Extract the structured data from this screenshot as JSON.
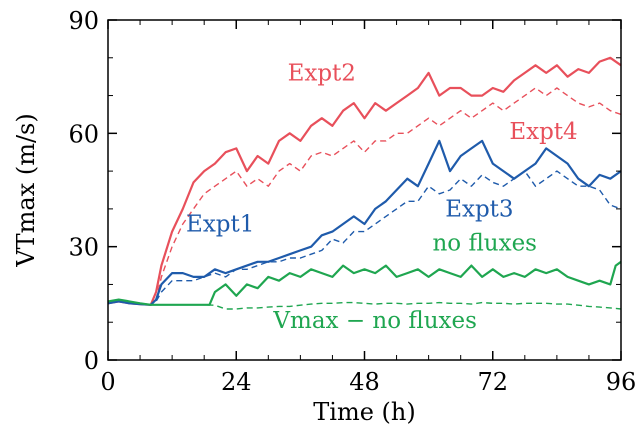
{
  "chart_data": {
    "type": "line",
    "xlabel": "Time (h)",
    "ylabel": "VTmax (m/s)",
    "xlim": [
      0,
      96
    ],
    "ylim": [
      0,
      90
    ],
    "xticks": [
      0,
      24,
      48,
      72,
      96
    ],
    "yticks": [
      0,
      30,
      60,
      90
    ],
    "grid": false,
    "series": [
      {
        "name": "Expt2",
        "color": "#e8505b",
        "style": "solid",
        "x": [
          0,
          2,
          4,
          6,
          8,
          9,
          10,
          12,
          14,
          16,
          18,
          20,
          22,
          24,
          26,
          28,
          30,
          32,
          34,
          36,
          38,
          40,
          42,
          44,
          46,
          48,
          50,
          52,
          54,
          56,
          58,
          60,
          62,
          64,
          66,
          68,
          70,
          72,
          74,
          76,
          78,
          80,
          82,
          84,
          86,
          88,
          90,
          92,
          94,
          96
        ],
        "y": [
          15,
          15.5,
          15,
          14.8,
          14.6,
          18,
          25,
          34,
          40,
          47,
          50,
          52,
          55,
          56,
          50,
          54,
          52,
          58,
          60,
          58,
          62,
          64,
          62,
          66,
          68,
          64,
          68,
          66,
          68,
          70,
          72,
          76,
          70,
          72,
          72,
          70,
          70,
          72,
          71,
          74,
          76,
          78,
          76,
          78,
          75,
          77,
          76,
          79,
          80,
          78
        ]
      },
      {
        "name": "Expt4",
        "color": "#e8505b",
        "style": "dashed",
        "x": [
          0,
          2,
          4,
          6,
          8,
          9,
          10,
          12,
          14,
          16,
          18,
          20,
          22,
          24,
          26,
          28,
          30,
          32,
          34,
          36,
          38,
          40,
          42,
          44,
          46,
          48,
          50,
          52,
          54,
          56,
          58,
          60,
          62,
          64,
          66,
          68,
          70,
          72,
          74,
          76,
          78,
          80,
          82,
          84,
          86,
          88,
          90,
          92,
          94,
          96
        ],
        "y": [
          15,
          15.5,
          15,
          14.8,
          14.6,
          16,
          22,
          30,
          36,
          40,
          44,
          46,
          48,
          50,
          46,
          48,
          46,
          50,
          52,
          50,
          54,
          55,
          54,
          56,
          58,
          55,
          58,
          58,
          60,
          60,
          62,
          64,
          62,
          64,
          66,
          64,
          66,
          68,
          66,
          68,
          70,
          72,
          70,
          72,
          70,
          68,
          67,
          68,
          66,
          65
        ]
      },
      {
        "name": "Expt1",
        "color": "#1f5bab",
        "style": "solid",
        "x": [
          0,
          2,
          4,
          6,
          8,
          9,
          10,
          12,
          14,
          16,
          18,
          20,
          22,
          24,
          26,
          28,
          30,
          32,
          34,
          36,
          38,
          40,
          42,
          44,
          46,
          48,
          50,
          52,
          54,
          56,
          58,
          60,
          62,
          64,
          66,
          68,
          70,
          72,
          74,
          76,
          78,
          80,
          82,
          84,
          86,
          88,
          90,
          92,
          94,
          96
        ],
        "y": [
          15,
          15.5,
          15,
          14.8,
          14.6,
          16,
          20,
          23,
          23,
          22,
          22,
          24,
          23,
          24,
          25,
          26,
          26,
          27,
          28,
          29,
          30,
          33,
          34,
          36,
          38,
          36,
          40,
          42,
          45,
          48,
          46,
          52,
          58,
          50,
          54,
          56,
          58,
          52,
          50,
          48,
          50,
          52,
          56,
          54,
          52,
          48,
          46,
          49,
          48,
          50
        ]
      },
      {
        "name": "Expt3",
        "color": "#1f5bab",
        "style": "dashed",
        "x": [
          0,
          2,
          4,
          6,
          8,
          9,
          10,
          12,
          14,
          16,
          18,
          20,
          22,
          24,
          26,
          28,
          30,
          32,
          34,
          36,
          38,
          40,
          42,
          44,
          46,
          48,
          50,
          52,
          54,
          56,
          58,
          60,
          62,
          64,
          66,
          68,
          70,
          72,
          74,
          76,
          78,
          80,
          82,
          84,
          86,
          88,
          90,
          92,
          94,
          96
        ],
        "y": [
          15,
          15.5,
          15,
          14.8,
          14.6,
          15.5,
          18,
          21,
          21,
          21,
          22,
          23,
          22,
          24,
          24,
          25,
          26,
          26,
          27,
          27,
          28,
          29,
          32,
          31,
          34,
          34,
          36,
          38,
          40,
          42,
          42,
          46,
          44,
          45,
          48,
          46,
          49,
          47,
          46,
          48,
          50,
          46,
          48,
          50,
          48,
          46,
          46,
          45,
          41,
          40
        ]
      },
      {
        "name": "no fluxes",
        "color": "#1fa650",
        "style": "solid",
        "x": [
          0,
          2,
          4,
          6,
          8,
          10,
          12,
          14,
          16,
          18,
          19,
          20,
          22,
          24,
          26,
          28,
          30,
          32,
          34,
          36,
          38,
          40,
          42,
          44,
          46,
          48,
          50,
          52,
          54,
          56,
          58,
          60,
          62,
          64,
          66,
          68,
          70,
          72,
          74,
          76,
          78,
          80,
          82,
          84,
          86,
          88,
          90,
          92,
          94,
          95,
          96
        ],
        "y": [
          15.5,
          16,
          15.5,
          15,
          14.6,
          14.6,
          14.6,
          14.6,
          14.6,
          14.6,
          14.6,
          18,
          20,
          17,
          20,
          19,
          22,
          21,
          23,
          22,
          24,
          23,
          22,
          25,
          23,
          24,
          23,
          25,
          22,
          23,
          24,
          22,
          24,
          23,
          22,
          25,
          22,
          24,
          22,
          23,
          22,
          24,
          23,
          24,
          22,
          21,
          20,
          21,
          20,
          25,
          26
        ]
      },
      {
        "name": "Vmax - no fluxes",
        "color": "#1fa650",
        "style": "dashed",
        "x": [
          0,
          2,
          4,
          6,
          8,
          10,
          12,
          14,
          16,
          18,
          20,
          22,
          24,
          26,
          28,
          30,
          32,
          34,
          36,
          38,
          40,
          42,
          44,
          46,
          48,
          50,
          52,
          54,
          56,
          58,
          60,
          62,
          64,
          66,
          68,
          70,
          72,
          74,
          76,
          78,
          80,
          82,
          84,
          86,
          88,
          90,
          92,
          94,
          96
        ],
        "y": [
          15.5,
          16,
          15.5,
          15,
          14.6,
          14.6,
          14.6,
          14.6,
          14.6,
          14.6,
          14.5,
          13.5,
          13.5,
          13.8,
          13.8,
          14,
          14.2,
          14.2,
          14.5,
          14.8,
          15,
          15,
          15.2,
          15.2,
          15,
          14.8,
          15,
          15,
          14.8,
          15,
          15,
          15.2,
          15,
          15,
          14.8,
          15.2,
          15,
          15,
          14.8,
          15,
          15,
          15,
          14.8,
          14.8,
          14.5,
          14.2,
          14,
          13.8,
          13.5
        ]
      }
    ],
    "labels": [
      {
        "text": "Expt2",
        "color": "#e8505b",
        "x": 40,
        "y": 74
      },
      {
        "text": "Expt4",
        "color": "#e8505b",
        "x": 81.5,
        "y": 58.5
      },
      {
        "text": "Expt1",
        "color": "#1f5bab",
        "x": 21,
        "y": 34
      },
      {
        "text": "Expt3",
        "color": "#1f5bab",
        "x": 69.5,
        "y": 38
      },
      {
        "text": "no fluxes",
        "color": "#1fa650",
        "x": 70.5,
        "y": 29
      },
      {
        "text": "Vmax − no fluxes",
        "color": "#1fa650",
        "x": 50,
        "y": 8.5
      }
    ]
  }
}
